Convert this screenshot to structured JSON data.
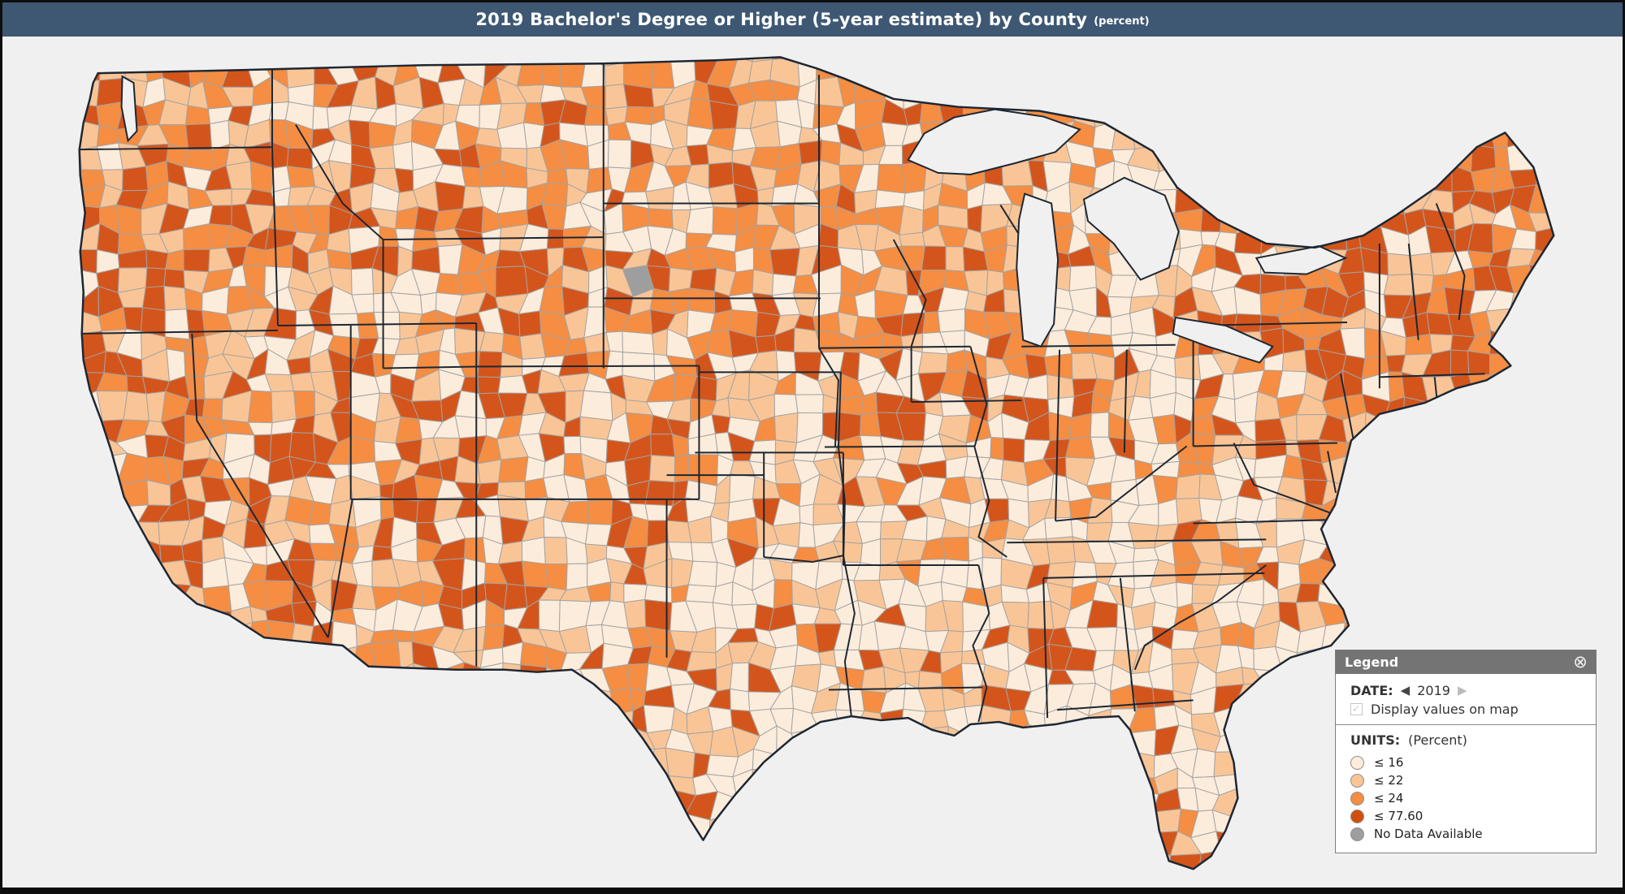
{
  "header": {
    "title": "2019 Bachelor's Degree or Higher (5-year estimate) by County",
    "suffix": "(percent)",
    "bg_color": "#3e5874",
    "text_color": "#ffffff"
  },
  "map": {
    "background": "#f0f0f0",
    "county_border_color": "#a3a3a3",
    "state_border_color": "#1d2733",
    "palette": {
      "cream": "#fcecdb",
      "light": "#fac596",
      "mid": "#f58d42",
      "dark": "#d4551b",
      "no_data": "#9e9e9e"
    }
  },
  "legend": {
    "title": "Legend",
    "close_icon": "circle-x-icon",
    "date_label": "DATE:",
    "prev_icon": "left-triangle-icon",
    "prev_glyph": "◀",
    "date_value": "2019",
    "next_icon": "right-triangle-icon",
    "next_glyph": "▶",
    "checkbox_checked": true,
    "checkbox_glyph": "✓",
    "checkbox_label": "Display values on map",
    "units_label": "UNITS:",
    "units_value": "(Percent)",
    "classes": [
      {
        "label": "≤ 16",
        "color": "#fcecdb"
      },
      {
        "label": "≤ 22",
        "color": "#fac596"
      },
      {
        "label": "≤ 24",
        "color": "#f58d42"
      },
      {
        "label": "≤ 77.60",
        "color": "#d14f0a"
      },
      {
        "label": "No Data Available",
        "color": "#9e9e9e"
      }
    ]
  }
}
